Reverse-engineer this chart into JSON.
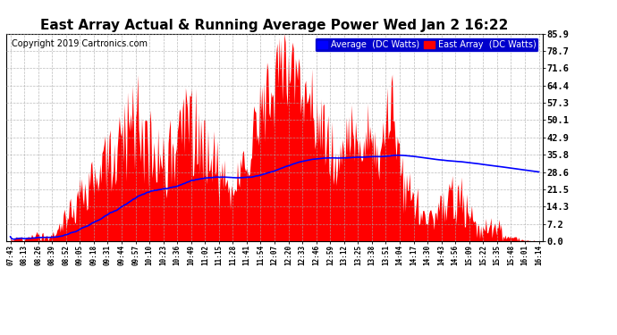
{
  "title": "East Array Actual & Running Average Power Wed Jan 2 16:22",
  "copyright": "Copyright 2019 Cartronics.com",
  "ylabel_right_ticks": [
    0.0,
    7.2,
    14.3,
    21.5,
    28.6,
    35.8,
    42.9,
    50.1,
    57.3,
    64.4,
    71.6,
    78.7,
    85.9
  ],
  "ylim": [
    0.0,
    85.9
  ],
  "xtick_labels": [
    "07:43",
    "08:13",
    "08:26",
    "08:39",
    "08:52",
    "09:05",
    "09:18",
    "09:31",
    "09:44",
    "09:57",
    "10:10",
    "10:23",
    "10:36",
    "10:49",
    "11:02",
    "11:15",
    "11:28",
    "11:41",
    "11:54",
    "12:07",
    "12:20",
    "12:33",
    "12:46",
    "12:59",
    "13:12",
    "13:25",
    "13:38",
    "13:51",
    "14:04",
    "14:17",
    "14:30",
    "14:43",
    "14:56",
    "15:09",
    "15:22",
    "15:35",
    "15:48",
    "16:01",
    "16:14"
  ],
  "n_xticks": 39,
  "east_array_color": "#FF0000",
  "average_color": "#0000FF",
  "background_color": "#FFFFFF",
  "grid_color": "#AAAAAA",
  "title_fontsize": 11,
  "copyright_fontsize": 7,
  "legend_labels": [
    "Average  (DC Watts)",
    "East Array  (DC Watts)"
  ],
  "legend_colors": [
    "#0000FF",
    "#FF0000"
  ]
}
